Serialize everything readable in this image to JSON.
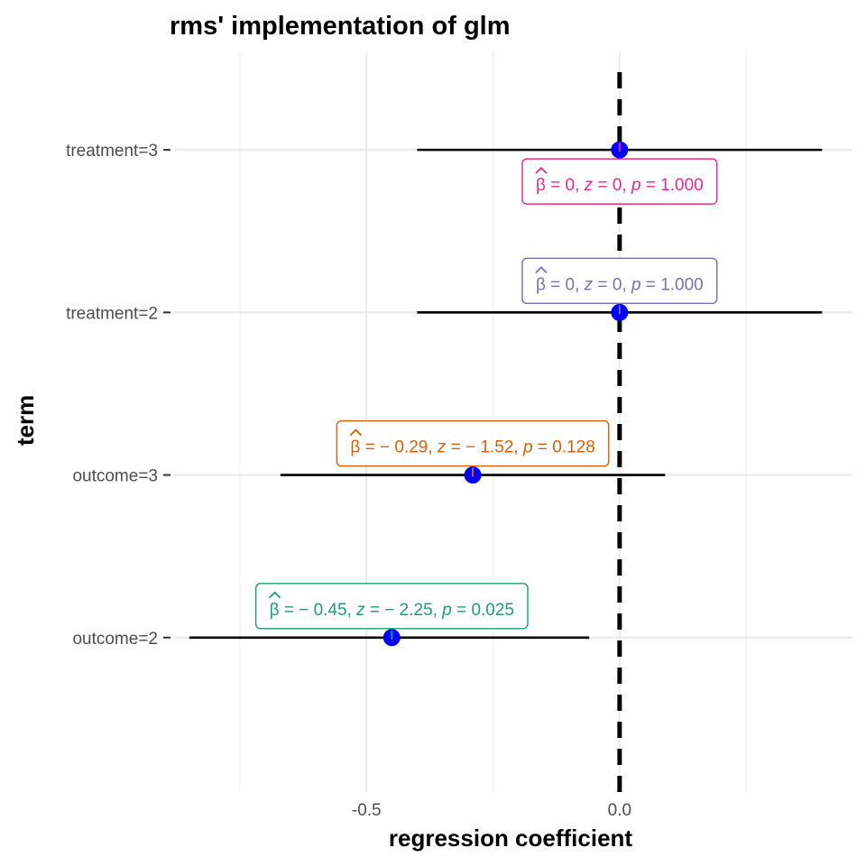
{
  "chart_data": {
    "type": "scatter",
    "title": "rms' implementation of glm",
    "xlabel": "regression coefficient",
    "ylabel": "term",
    "xlim": [
      -0.88,
      0.46
    ],
    "x_ticks": [
      -0.5,
      0.0
    ],
    "x_tick_labels": [
      "-0.5",
      "0.0"
    ],
    "reference_line_x": 0,
    "grid": true,
    "terms": [
      {
        "term": "treatment=3",
        "estimate": 0.0,
        "ci_low": -0.4,
        "ci_high": 0.4,
        "label": {
          "beta": "0",
          "z": "0",
          "p": "1.000"
        },
        "color": "#e7298a",
        "label_side": "below"
      },
      {
        "term": "treatment=2",
        "estimate": 0.0,
        "ci_low": -0.4,
        "ci_high": 0.4,
        "label": {
          "beta": "0",
          "z": "0",
          "p": "1.000"
        },
        "color": "#7570b3",
        "label_side": "above"
      },
      {
        "term": "outcome=3",
        "estimate": -0.29,
        "ci_low": -0.67,
        "ci_high": 0.09,
        "label": {
          "beta": "− 0.29",
          "z": "− 1.52",
          "p": "0.128"
        },
        "color": "#d95f02",
        "label_side": "above"
      },
      {
        "term": "outcome=2",
        "estimate": -0.45,
        "ci_low": -0.85,
        "ci_high": -0.06,
        "label": {
          "beta": "− 0.45",
          "z": "− 2.25",
          "p": "0.025"
        },
        "color": "#1b9e77",
        "label_side": "above"
      }
    ],
    "point_color": "#0000ff"
  }
}
